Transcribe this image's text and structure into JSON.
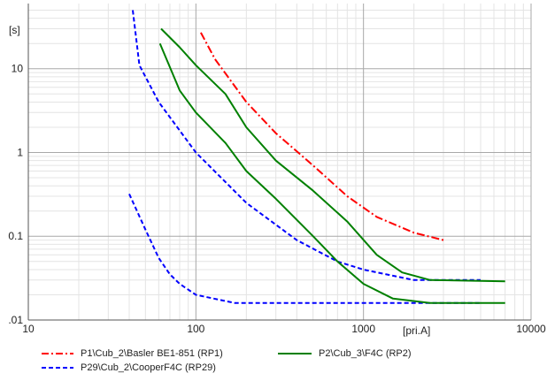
{
  "chart_data": {
    "type": "line",
    "x_scale": "log",
    "y_scale": "log",
    "xlim": [
      10,
      10000
    ],
    "ylim": [
      0.01,
      60
    ],
    "xlabel": "[pri.A]",
    "ylabel": "[s]",
    "grid": true,
    "legend_position": "bottom",
    "x_ticks": [
      {
        "value": 10,
        "label": "10"
      },
      {
        "value": 100,
        "label": "100"
      },
      {
        "value": 1000,
        "label": "1000"
      },
      {
        "value": 10000,
        "label": "10000"
      }
    ],
    "y_ticks": [
      {
        "value": 0.01,
        "label": ".01"
      },
      {
        "value": 0.1,
        "label": "0.1"
      },
      {
        "value": 1,
        "label": "1"
      },
      {
        "value": 10,
        "label": "10"
      }
    ],
    "series": [
      {
        "name": "P1\\Cub_2\\Basler BE1-851 (RP1)",
        "color": "#ff0000",
        "dash": "dashdot",
        "points": [
          [
            107,
            27
          ],
          [
            130,
            13
          ],
          [
            200,
            4
          ],
          [
            300,
            1.7
          ],
          [
            500,
            0.7
          ],
          [
            800,
            0.3
          ],
          [
            1200,
            0.17
          ],
          [
            2000,
            0.11
          ],
          [
            3000,
            0.09
          ]
        ]
      },
      {
        "name": "P29\\Cub_2\\CooperF4C (RP29)",
        "color": "#0000ff",
        "dash": "dashed",
        "points": [
          [
            42,
            50
          ],
          [
            46,
            11
          ],
          [
            60,
            4
          ],
          [
            100,
            1
          ],
          [
            200,
            0.25
          ],
          [
            400,
            0.09
          ],
          [
            700,
            0.05
          ],
          [
            1000,
            0.04
          ],
          [
            2000,
            0.03
          ],
          [
            5000,
            0.03
          ]
        ]
      },
      {
        "name": "P29\\Cub_2\\CooperF4C (RP29)",
        "color": "#0000ff",
        "dash": "dashed",
        "points": [
          [
            40,
            0.32
          ],
          [
            50,
            0.12
          ],
          [
            60,
            0.055
          ],
          [
            70,
            0.035
          ],
          [
            80,
            0.027
          ],
          [
            100,
            0.02
          ],
          [
            170,
            0.016
          ],
          [
            500,
            0.016
          ],
          [
            5000,
            0.016
          ]
        ]
      },
      {
        "name": "P2\\Cub_3\\F4C (RP2)",
        "color": "#008000",
        "dash": "solid",
        "points": [
          [
            62,
            30
          ],
          [
            80,
            18
          ],
          [
            100,
            11
          ],
          [
            150,
            5
          ],
          [
            200,
            2
          ],
          [
            300,
            0.8
          ],
          [
            500,
            0.35
          ],
          [
            800,
            0.15
          ],
          [
            1200,
            0.06
          ],
          [
            1700,
            0.037
          ],
          [
            2500,
            0.03
          ],
          [
            7000,
            0.029
          ]
        ]
      },
      {
        "name": "P2\\Cub_3\\F4C (RP2)",
        "color": "#008000",
        "dash": "solid",
        "points": [
          [
            61,
            20
          ],
          [
            80,
            5.5
          ],
          [
            100,
            3
          ],
          [
            150,
            1.3
          ],
          [
            200,
            0.6
          ],
          [
            300,
            0.28
          ],
          [
            500,
            0.1
          ],
          [
            700,
            0.05
          ],
          [
            1000,
            0.027
          ],
          [
            1500,
            0.018
          ],
          [
            2500,
            0.016
          ],
          [
            7000,
            0.016
          ]
        ]
      }
    ]
  },
  "legend": {
    "items": [
      {
        "label": "P1\\Cub_2\\Basler BE1-851 (RP1)",
        "color": "#ff0000",
        "dash": "dashdot"
      },
      {
        "label": "P2\\Cub_3\\F4C (RP2)",
        "color": "#008000",
        "dash": "solid"
      },
      {
        "label": "P29\\Cub_2\\CooperF4C (RP29)",
        "color": "#0000ff",
        "dash": "dashed"
      }
    ]
  }
}
